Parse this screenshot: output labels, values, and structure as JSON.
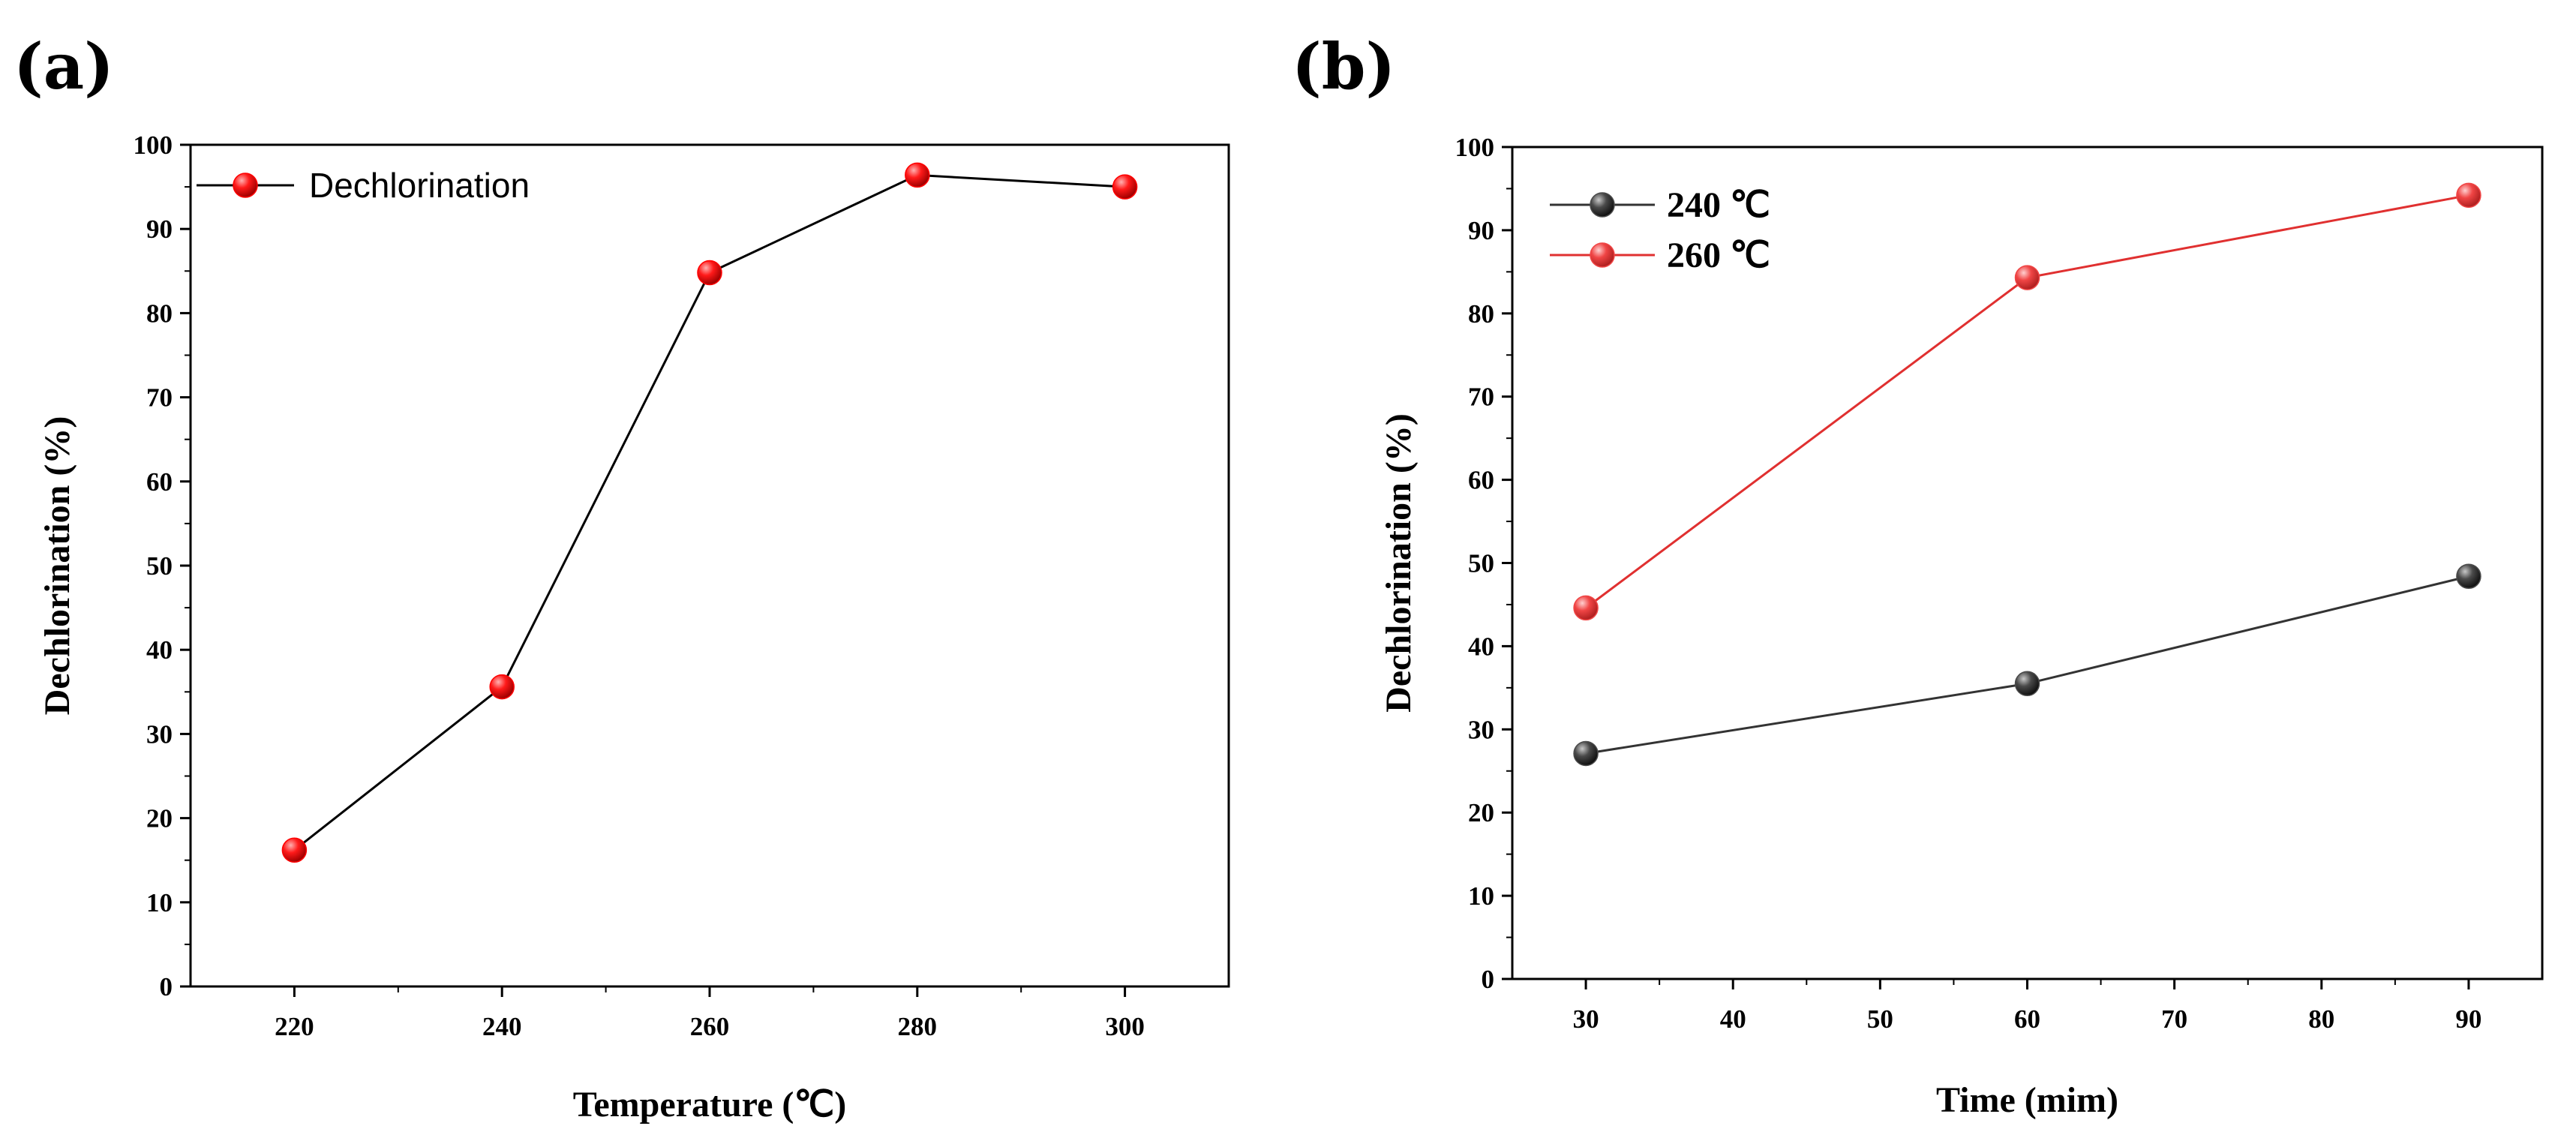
{
  "chart_data": [
    {
      "panel_label": "(a)",
      "type": "line",
      "xlabel": "Temperature (℃)",
      "ylabel": "Dechlorination (%)",
      "xlim": [
        210,
        310
      ],
      "ylim": [
        0,
        100
      ],
      "xticks": [
        "220",
        "240",
        "260",
        "280",
        "300"
      ],
      "yticks": [
        "0",
        "10",
        "20",
        "30",
        "40",
        "50",
        "60",
        "70",
        "80",
        "90",
        "100"
      ],
      "legend_position": "top-left",
      "series": [
        {
          "name": "Dechlorination",
          "color": "#ff0000",
          "line_color": "#000000",
          "x": [
            220,
            240,
            260,
            280,
            300
          ],
          "values": [
            16.2,
            35.6,
            84.8,
            96.4,
            95.0
          ]
        }
      ]
    },
    {
      "panel_label": "(b)",
      "type": "line",
      "xlabel": "Time (mim)",
      "ylabel": "Dechlorination (%)",
      "xlim": [
        25,
        95
      ],
      "ylim": [
        0,
        100
      ],
      "xticks": [
        "30",
        "40",
        "50",
        "60",
        "70",
        "80",
        "90"
      ],
      "yticks": [
        "0",
        "10",
        "20",
        "30",
        "40",
        "50",
        "60",
        "70",
        "80",
        "90",
        "100"
      ],
      "legend_position": "top-left",
      "series": [
        {
          "name": "240 ℃",
          "color": "#4a4a4a",
          "line_color": "#333333",
          "x": [
            30,
            60,
            90
          ],
          "values": [
            27.1,
            35.5,
            48.4
          ]
        },
        {
          "name": "260 ℃",
          "color": "#f04545",
          "line_color": "#e03030",
          "x": [
            30,
            60,
            90
          ],
          "values": [
            44.6,
            84.3,
            94.2
          ]
        }
      ]
    }
  ]
}
